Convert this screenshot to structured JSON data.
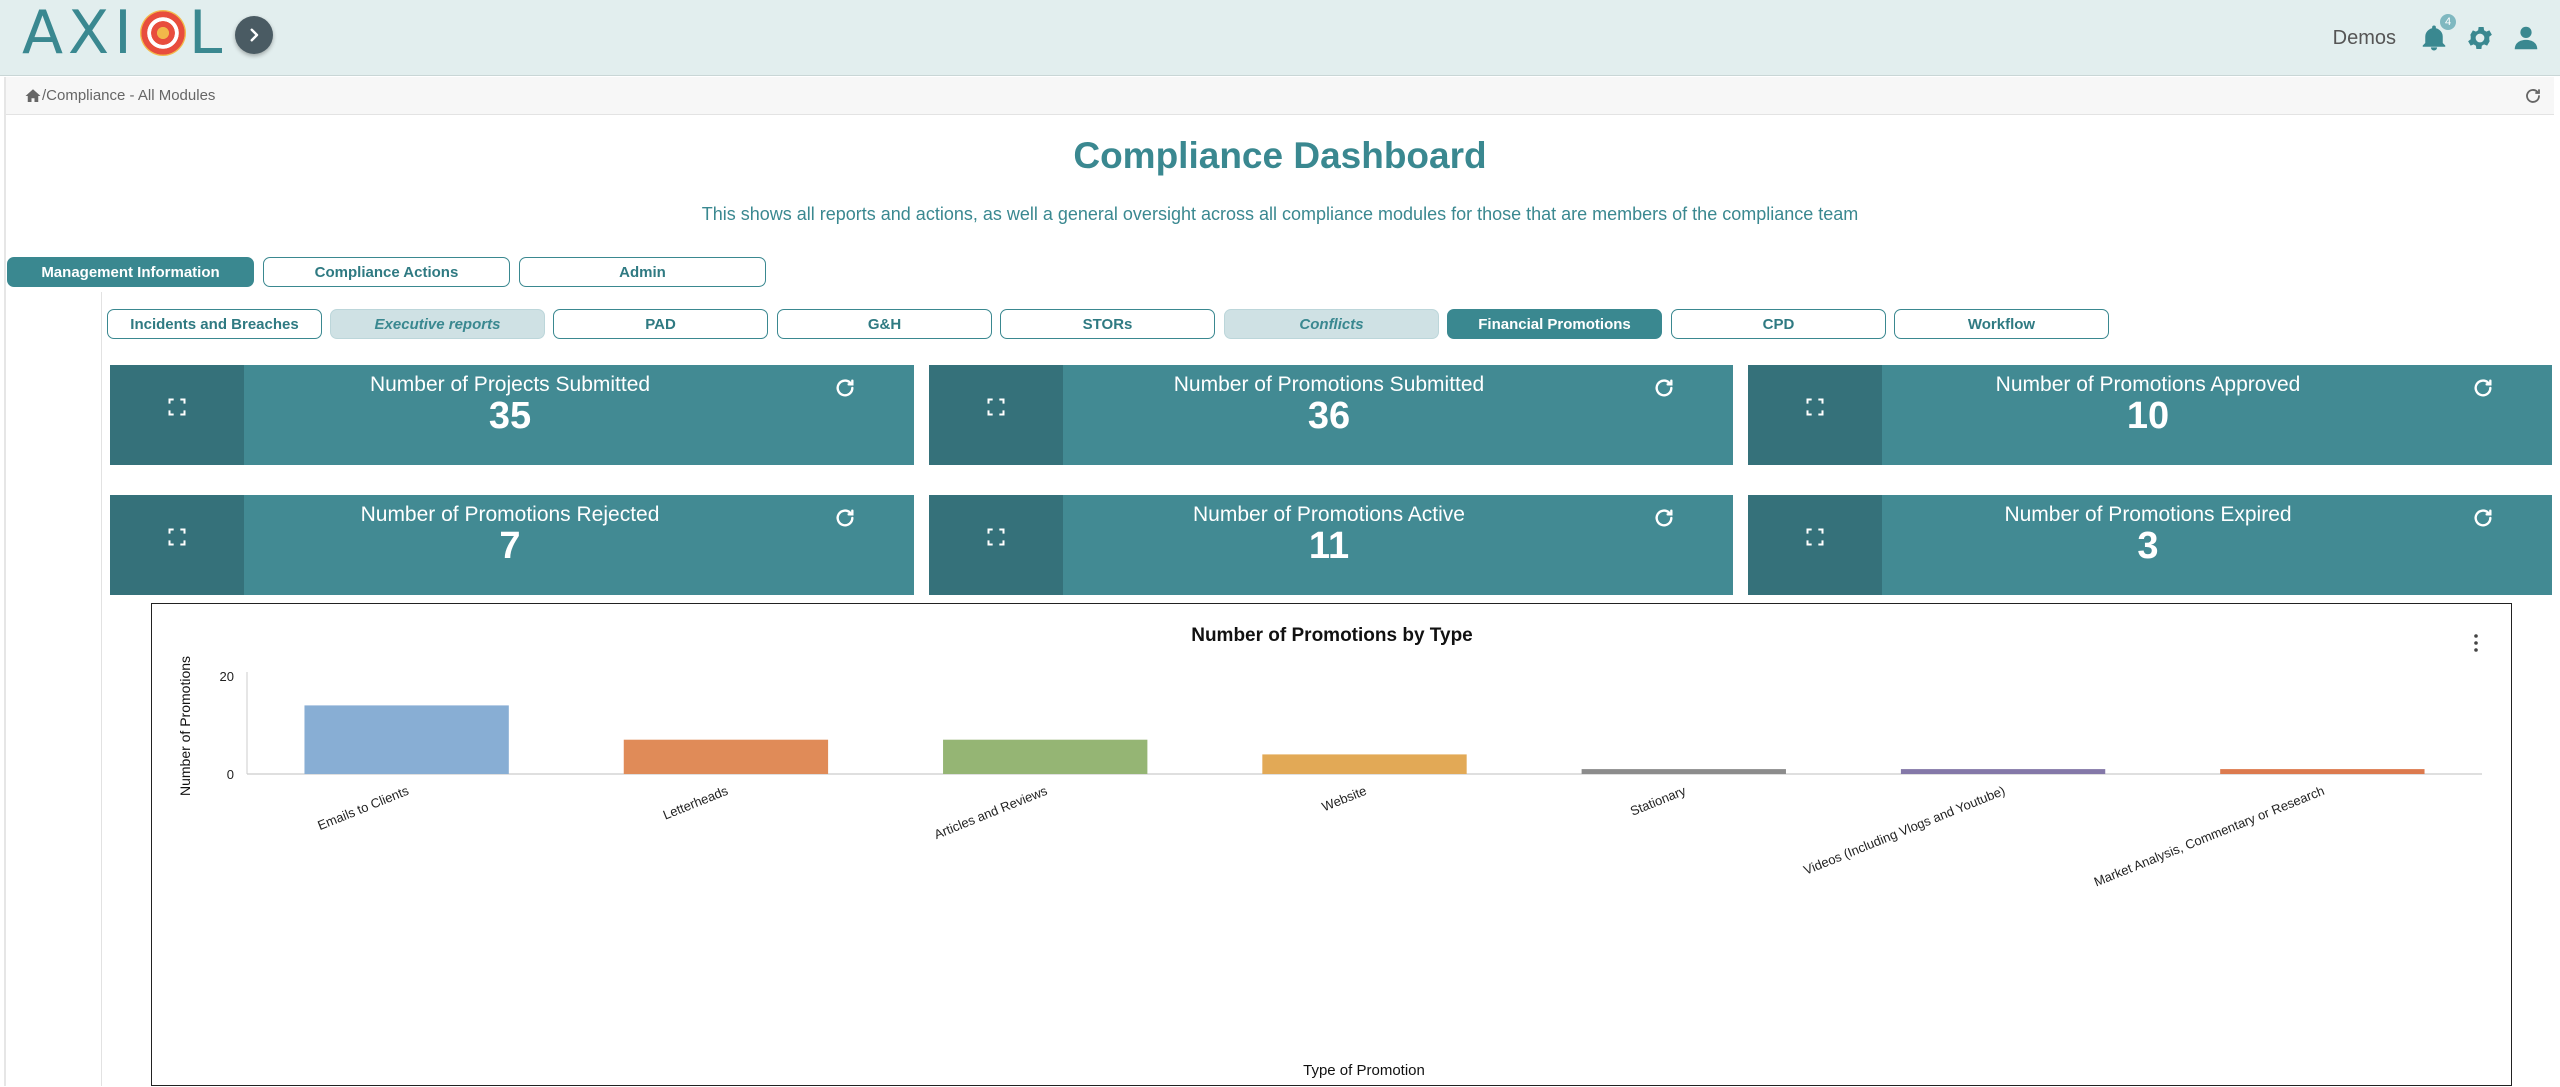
{
  "header": {
    "logo_text_left": "AXI",
    "logo_text_right": "L",
    "user_name": "Demos",
    "notification_count": "4"
  },
  "breadcrumb": {
    "path": "/Compliance - All Modules"
  },
  "page": {
    "title": "Compliance Dashboard",
    "subtitle": "This shows all reports and actions, as well a general oversight across all compliance modules for those that are members of the compliance team"
  },
  "main_tabs": [
    {
      "label": "Management Information",
      "state": "active"
    },
    {
      "label": "Compliance Actions",
      "state": "normal"
    },
    {
      "label": "Admin",
      "state": "normal"
    }
  ],
  "sub_tabs": [
    {
      "label": "Incidents and Breaches",
      "state": "normal"
    },
    {
      "label": "Executive reports",
      "state": "muted"
    },
    {
      "label": "PAD",
      "state": "normal"
    },
    {
      "label": "G&H",
      "state": "normal"
    },
    {
      "label": "STORs",
      "state": "normal"
    },
    {
      "label": "Conflicts",
      "state": "muted"
    },
    {
      "label": "Financial Promotions",
      "state": "active"
    },
    {
      "label": "CPD",
      "state": "normal"
    },
    {
      "label": "Workflow",
      "state": "normal"
    }
  ],
  "kpis": [
    {
      "label": "Number of Projects Submitted",
      "value": "35"
    },
    {
      "label": "Number of Promotions Submitted",
      "value": "36"
    },
    {
      "label": "Number of Promotions Approved",
      "value": "10"
    },
    {
      "label": "Number of Promotions Rejected",
      "value": "7"
    },
    {
      "label": "Number of Promotions Active",
      "value": "11"
    },
    {
      "label": "Number of Promotions Expired",
      "value": "3"
    }
  ],
  "colors": {
    "accent": "#3a8890",
    "kpi_bg": "#428a93",
    "kpi_side": "#35717a"
  },
  "chart_data": {
    "type": "bar",
    "title": "Number of Promotions by Type",
    "xlabel": "Type of Promotion",
    "ylabel": "Number of Promotions",
    "ylim": [
      0,
      20
    ],
    "yticks": [
      0,
      20
    ],
    "grid": false,
    "categories": [
      "Emails to Clients",
      "Letterheads",
      "Articles and Reviews",
      "Website",
      "Stationary",
      "Videos (Including Vlogs and Youtube)",
      "Market Analysis, Commentary or Research"
    ],
    "values": [
      14,
      7,
      7,
      4,
      1,
      1,
      1
    ],
    "colors": [
      "#88aed4",
      "#e08b58",
      "#95b574",
      "#e2a956",
      "#8c8c8c",
      "#8478a8",
      "#dc7a4e"
    ]
  }
}
